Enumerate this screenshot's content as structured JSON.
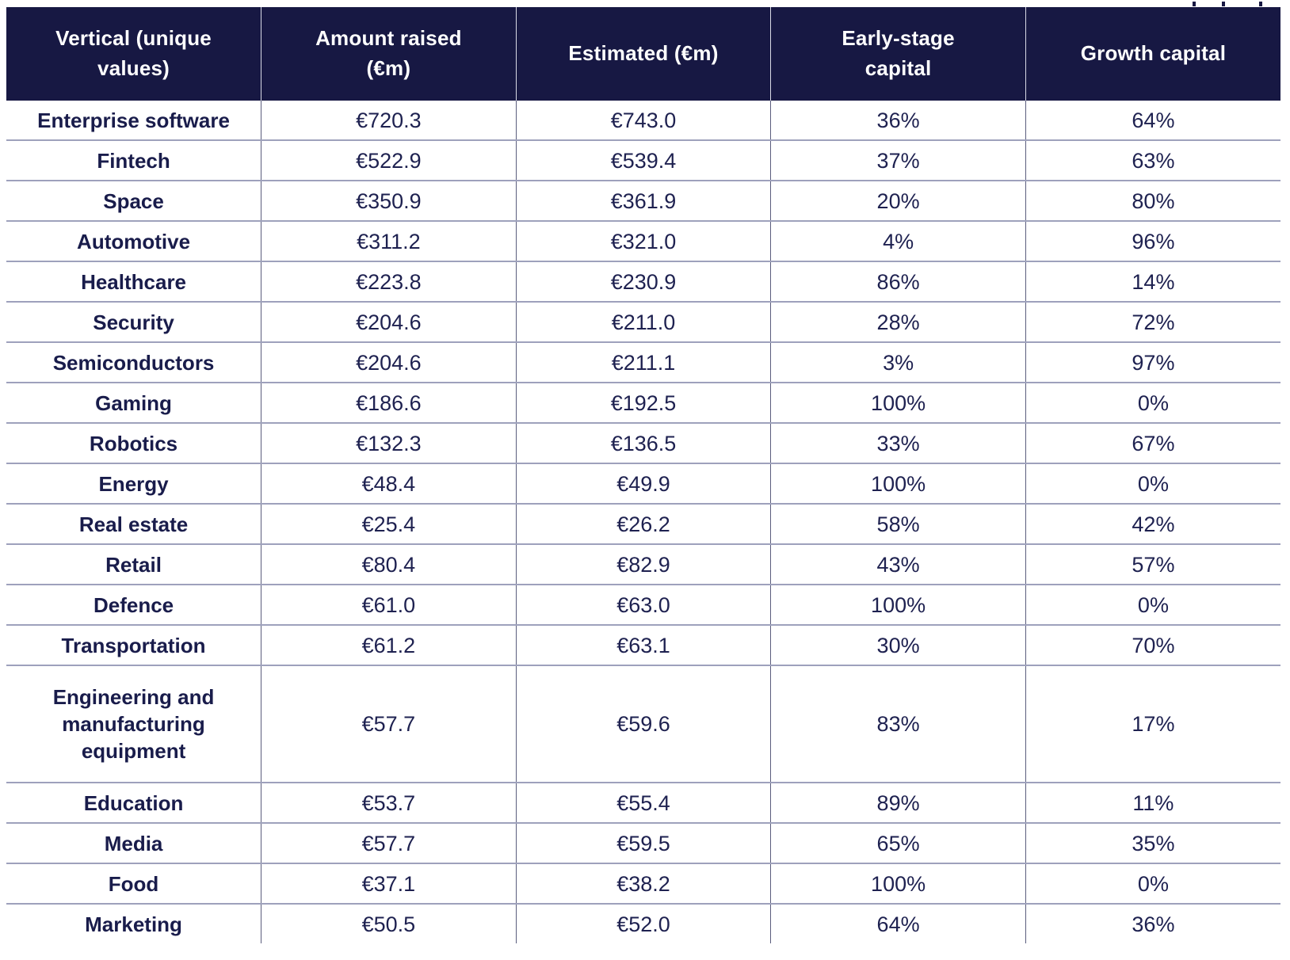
{
  "colors": {
    "header_bg": "#171843",
    "header_text": "#ffffff",
    "body_text": "#1e2150",
    "first_column_text": "#191c4b",
    "row_divider": "#9ea1bc",
    "column_divider": "#5a5d7d",
    "header_column_divider": "#d9dae6",
    "background": "#ffffff"
  },
  "table": {
    "columns": [
      {
        "label": "Vertical (unique values)",
        "display": "Vertical (unique\nvalues)"
      },
      {
        "label": "Amount raised (€m)",
        "display": "Amount raised\n(€m)"
      },
      {
        "label": "Estimated (€m)",
        "display": "Estimated (€m)"
      },
      {
        "label": "Early-stage capital",
        "display": "Early-stage\ncapital"
      },
      {
        "label": "Growth capital",
        "display": "Growth capital"
      }
    ],
    "rows": [
      [
        "Enterprise software",
        "€720.3",
        "€743.0",
        "36%",
        "64%"
      ],
      [
        "Fintech",
        "€522.9",
        "€539.4",
        "37%",
        "63%"
      ],
      [
        "Space",
        "€350.9",
        "€361.9",
        "20%",
        "80%"
      ],
      [
        "Automotive",
        "€311.2",
        "€321.0",
        "4%",
        "96%"
      ],
      [
        "Healthcare",
        "€223.8",
        "€230.9",
        "86%",
        "14%"
      ],
      [
        "Security",
        "€204.6",
        "€211.0",
        "28%",
        "72%"
      ],
      [
        "Semiconductors",
        "€204.6",
        "€211.1",
        "3%",
        "97%"
      ],
      [
        "Gaming",
        "€186.6",
        "€192.5",
        "100%",
        "0%"
      ],
      [
        "Robotics",
        "€132.3",
        "€136.5",
        "33%",
        "67%"
      ],
      [
        "Energy",
        "€48.4",
        "€49.9",
        "100%",
        "0%"
      ],
      [
        "Real estate",
        "€25.4",
        "€26.2",
        "58%",
        "42%"
      ],
      [
        "Retail",
        "€80.4",
        "€82.9",
        "43%",
        "57%"
      ],
      [
        "Defence",
        "€61.0",
        "€63.0",
        "100%",
        "0%"
      ],
      [
        "Transportation",
        "€61.2",
        "€63.1",
        "30%",
        "70%"
      ],
      [
        "Engineering and\nmanufacturing\nequipment",
        "€57.7",
        "€59.6",
        "83%",
        "17%"
      ],
      [
        "Education",
        "€53.7",
        "€55.4",
        "89%",
        "11%"
      ],
      [
        "Media",
        "€57.7",
        "€59.5",
        "65%",
        "35%"
      ],
      [
        "Food",
        "€37.1",
        "€38.2",
        "100%",
        "0%"
      ],
      [
        "Marketing",
        "€50.5",
        "€52.0",
        "64%",
        "36%"
      ]
    ]
  },
  "chart_data": {
    "type": "table",
    "columns": [
      "Vertical (unique values)",
      "Amount raised (€m)",
      "Estimated (€m)",
      "Early-stage capital",
      "Growth capital"
    ],
    "rows": [
      {
        "vertical": "Enterprise software",
        "amount_raised_eur_m": 720.3,
        "estimated_eur_m": 743.0,
        "early_stage_capital_pct": 36,
        "growth_capital_pct": 64
      },
      {
        "vertical": "Fintech",
        "amount_raised_eur_m": 522.9,
        "estimated_eur_m": 539.4,
        "early_stage_capital_pct": 37,
        "growth_capital_pct": 63
      },
      {
        "vertical": "Space",
        "amount_raised_eur_m": 350.9,
        "estimated_eur_m": 361.9,
        "early_stage_capital_pct": 20,
        "growth_capital_pct": 80
      },
      {
        "vertical": "Automotive",
        "amount_raised_eur_m": 311.2,
        "estimated_eur_m": 321.0,
        "early_stage_capital_pct": 4,
        "growth_capital_pct": 96
      },
      {
        "vertical": "Healthcare",
        "amount_raised_eur_m": 223.8,
        "estimated_eur_m": 230.9,
        "early_stage_capital_pct": 86,
        "growth_capital_pct": 14
      },
      {
        "vertical": "Security",
        "amount_raised_eur_m": 204.6,
        "estimated_eur_m": 211.0,
        "early_stage_capital_pct": 28,
        "growth_capital_pct": 72
      },
      {
        "vertical": "Semiconductors",
        "amount_raised_eur_m": 204.6,
        "estimated_eur_m": 211.1,
        "early_stage_capital_pct": 3,
        "growth_capital_pct": 97
      },
      {
        "vertical": "Gaming",
        "amount_raised_eur_m": 186.6,
        "estimated_eur_m": 192.5,
        "early_stage_capital_pct": 100,
        "growth_capital_pct": 0
      },
      {
        "vertical": "Robotics",
        "amount_raised_eur_m": 132.3,
        "estimated_eur_m": 136.5,
        "early_stage_capital_pct": 33,
        "growth_capital_pct": 67
      },
      {
        "vertical": "Energy",
        "amount_raised_eur_m": 48.4,
        "estimated_eur_m": 49.9,
        "early_stage_capital_pct": 100,
        "growth_capital_pct": 0
      },
      {
        "vertical": "Real estate",
        "amount_raised_eur_m": 25.4,
        "estimated_eur_m": 26.2,
        "early_stage_capital_pct": 58,
        "growth_capital_pct": 42
      },
      {
        "vertical": "Retail",
        "amount_raised_eur_m": 80.4,
        "estimated_eur_m": 82.9,
        "early_stage_capital_pct": 43,
        "growth_capital_pct": 57
      },
      {
        "vertical": "Defence",
        "amount_raised_eur_m": 61.0,
        "estimated_eur_m": 63.0,
        "early_stage_capital_pct": 100,
        "growth_capital_pct": 0
      },
      {
        "vertical": "Transportation",
        "amount_raised_eur_m": 61.2,
        "estimated_eur_m": 63.1,
        "early_stage_capital_pct": 30,
        "growth_capital_pct": 70
      },
      {
        "vertical": "Engineering and manufacturing equipment",
        "amount_raised_eur_m": 57.7,
        "estimated_eur_m": 59.6,
        "early_stage_capital_pct": 83,
        "growth_capital_pct": 17
      },
      {
        "vertical": "Education",
        "amount_raised_eur_m": 53.7,
        "estimated_eur_m": 55.4,
        "early_stage_capital_pct": 89,
        "growth_capital_pct": 11
      },
      {
        "vertical": "Media",
        "amount_raised_eur_m": 57.7,
        "estimated_eur_m": 59.5,
        "early_stage_capital_pct": 65,
        "growth_capital_pct": 35
      },
      {
        "vertical": "Food",
        "amount_raised_eur_m": 37.1,
        "estimated_eur_m": 38.2,
        "early_stage_capital_pct": 100,
        "growth_capital_pct": 0
      },
      {
        "vertical": "Marketing",
        "amount_raised_eur_m": 50.5,
        "estimated_eur_m": 52.0,
        "early_stage_capital_pct": 64,
        "growth_capital_pct": 36
      }
    ]
  }
}
